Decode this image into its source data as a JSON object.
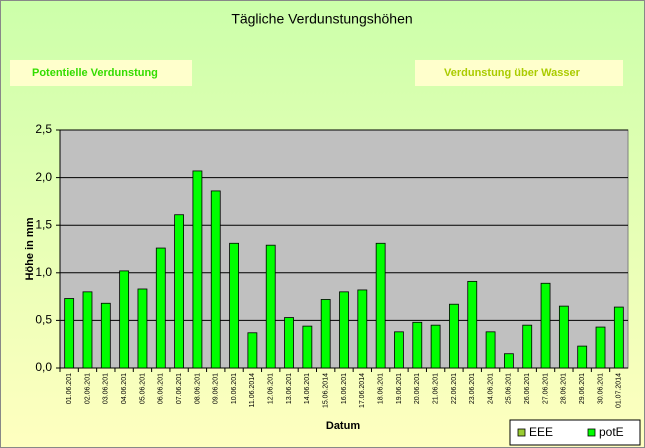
{
  "chart_data": {
    "type": "bar",
    "title": "Tägliche Verdunstungshöhen",
    "annotations": [
      "Potentielle Verdunstung",
      "Verdunstung über Wasser"
    ],
    "y_label": "Höhe in mm",
    "x_label": "Datum",
    "categories": [
      "01.06.201",
      "02.06.201",
      "03.06.201",
      "04.06.201",
      "05.06.201",
      "06.06.201",
      "07.06.201",
      "08.06.201",
      "09.06.201",
      "10.06.201",
      "11.06.2014",
      "12.06.201",
      "13.06.201",
      "14.06.201",
      "15.06.2014",
      "16.06.201",
      "17.06.2014",
      "18.06.201",
      "19.06.201",
      "20.06.201",
      "21.06.201",
      "22.06.201",
      "23.06.201",
      "24.06.201",
      "25.06.201",
      "26.06.201",
      "27.06.201",
      "28.06.201",
      "29.06.201",
      "30.06.201",
      "01.07.2014"
    ],
    "series": [
      {
        "name": "EEE",
        "color": "#99cc33",
        "values": [
          null,
          null,
          null,
          null,
          null,
          null,
          null,
          null,
          null,
          null,
          null,
          null,
          null,
          null,
          null,
          null,
          null,
          null,
          null,
          null,
          null,
          null,
          null,
          null,
          null,
          null,
          null,
          null,
          null,
          null,
          null
        ]
      },
      {
        "name": "potE",
        "color": "#00ff00",
        "values": [
          0.73,
          0.8,
          0.68,
          1.02,
          0.83,
          1.26,
          1.61,
          2.07,
          1.86,
          1.31,
          0.37,
          1.29,
          0.53,
          0.44,
          0.72,
          0.8,
          0.82,
          1.31,
          0.38,
          0.48,
          0.45,
          0.67,
          0.91,
          0.38,
          0.15,
          0.45,
          0.89,
          0.65,
          0.23,
          0.43,
          0.64
        ]
      }
    ],
    "ylim": [
      0,
      2.5
    ],
    "yticks": [
      {
        "value": 0,
        "label": "0,0"
      },
      {
        "value": 0.5,
        "label": "0,5"
      },
      {
        "value": 1,
        "label": "1,0"
      },
      {
        "value": 1.5,
        "label": "1,5"
      },
      {
        "value": 2,
        "label": "2,0"
      },
      {
        "value": 2.5,
        "label": "2,5"
      }
    ],
    "grid": true,
    "legend": "bottom-right"
  }
}
